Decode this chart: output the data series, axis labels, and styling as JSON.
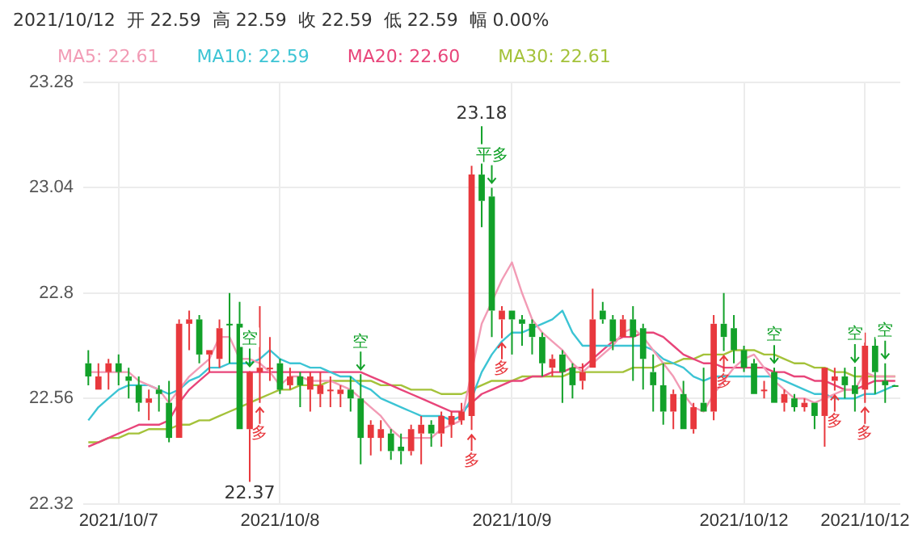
{
  "chart_data": {
    "type": "candlestick",
    "annotations": [
      "2021/10/12  开 22.59  高 22.59  收 22.59  低 22.59  幅 0.00%",
      {
        "text": "空",
        "y": 22.622
      },
      {
        "text": "多",
        "y": 22.55
      },
      {
        "text": "空",
        "y": 22.615
      },
      {
        "text": "多",
        "y": 22.488
      },
      {
        "text": "平多",
        "y": 23.04
      },
      {
        "text": "多",
        "y": 22.697
      },
      {
        "text": "多",
        "y": 22.668
      },
      {
        "text": "空",
        "y": 22.63
      },
      {
        "text": "多",
        "y": 22.578
      },
      {
        "text": "空",
        "y": 22.632
      },
      {
        "text": "多",
        "y": 22.55
      },
      {
        "text": "空",
        "y": 22.64
      }
    ],
    "categories": [
      null,
      null,
      null,
      "2021/10/7",
      null,
      null,
      null,
      null,
      null,
      null,
      null,
      null,
      null,
      null,
      null,
      null,
      null,
      null,
      null,
      "2021/10/8",
      null,
      null,
      null,
      null,
      null,
      null,
      null,
      null,
      null,
      null,
      null,
      null,
      null,
      null,
      null,
      null,
      null,
      null,
      null,
      null,
      null,
      null,
      "2021/10/9",
      null,
      null,
      null,
      null,
      null,
      null,
      null,
      null,
      null,
      null,
      null,
      null,
      null,
      null,
      null,
      null,
      null,
      null,
      null,
      null,
      null,
      null,
      "2021/10/12",
      null,
      null,
      null,
      null,
      null,
      null,
      null,
      null,
      null,
      null,
      null,
      "2021/10/12",
      null,
      null,
      null
    ],
    "ohlc": [
      [
        22.64,
        22.67,
        22.59,
        22.61
      ],
      [
        22.58,
        22.64,
        22.58,
        22.61
      ],
      [
        22.62,
        22.65,
        22.58,
        22.64
      ],
      [
        22.64,
        22.66,
        22.59,
        22.62
      ],
      [
        22.61,
        22.63,
        22.56,
        22.6
      ],
      [
        22.59,
        22.61,
        22.53,
        22.55
      ],
      [
        22.55,
        22.58,
        22.51,
        22.56
      ],
      [
        22.58,
        22.59,
        22.53,
        22.57
      ],
      [
        22.55,
        22.6,
        22.46,
        22.47
      ],
      [
        22.47,
        22.74,
        22.47,
        22.73
      ],
      [
        22.73,
        22.76,
        22.67,
        22.74
      ],
      [
        22.74,
        22.75,
        22.64,
        22.66
      ],
      [
        22.66,
        22.67,
        22.62,
        22.67
      ],
      [
        22.65,
        22.74,
        22.63,
        22.72
      ],
      [
        22.73,
        22.8,
        22.64,
        22.73
      ],
      [
        22.73,
        22.78,
        22.49,
        22.49
      ],
      [
        22.49,
        22.622,
        22.37,
        22.62
      ],
      [
        22.62,
        22.77,
        22.55,
        22.63
      ],
      [
        22.63,
        22.7,
        22.6,
        22.63
      ],
      [
        22.64,
        22.65,
        22.57,
        22.58
      ],
      [
        22.59,
        22.63,
        22.58,
        22.61
      ],
      [
        22.61,
        22.62,
        22.54,
        22.59
      ],
      [
        22.58,
        22.62,
        22.53,
        22.61
      ],
      [
        22.57,
        22.62,
        22.54,
        22.59
      ],
      [
        22.58,
        22.61,
        22.54,
        22.58
      ],
      [
        22.57,
        22.59,
        22.54,
        22.58
      ],
      [
        22.58,
        22.61,
        22.53,
        22.56
      ],
      [
        22.56,
        22.615,
        22.41,
        22.47
      ],
      [
        22.47,
        22.51,
        22.43,
        22.5
      ],
      [
        22.47,
        22.51,
        22.44,
        22.49
      ],
      [
        22.48,
        22.49,
        22.42,
        22.44
      ],
      [
        22.45,
        22.48,
        22.41,
        22.44
      ],
      [
        22.44,
        22.5,
        22.43,
        22.49
      ],
      [
        22.48,
        22.52,
        22.41,
        22.5
      ],
      [
        22.5,
        22.51,
        22.45,
        22.48
      ],
      [
        22.48,
        22.53,
        22.45,
        22.52
      ],
      [
        22.5,
        22.53,
        22.47,
        22.52
      ],
      [
        22.51,
        22.55,
        22.5,
        22.53
      ],
      [
        22.52,
        23.09,
        22.488,
        23.07
      ],
      [
        23.07,
        23.18,
        22.95,
        23.01
      ],
      [
        23.02,
        23.04,
        22.7,
        22.76
      ],
      [
        22.74,
        22.77,
        22.697,
        22.76
      ],
      [
        22.76,
        22.76,
        22.66,
        22.74
      ],
      [
        22.74,
        22.75,
        22.68,
        22.73
      ],
      [
        22.73,
        22.74,
        22.66,
        22.7
      ],
      [
        22.7,
        22.71,
        22.61,
        22.64
      ],
      [
        22.63,
        22.66,
        22.61,
        22.65
      ],
      [
        22.66,
        22.67,
        22.55,
        22.62
      ],
      [
        22.63,
        22.64,
        22.56,
        22.59
      ],
      [
        22.6,
        22.64,
        22.58,
        22.62
      ],
      [
        22.63,
        22.81,
        22.63,
        22.74
      ],
      [
        22.76,
        22.78,
        22.73,
        22.74
      ],
      [
        22.74,
        22.75,
        22.67,
        22.69
      ],
      [
        22.7,
        22.75,
        22.7,
        22.74
      ],
      [
        22.74,
        22.77,
        22.6,
        22.7
      ],
      [
        22.72,
        22.73,
        22.58,
        22.65
      ],
      [
        22.62,
        22.66,
        22.53,
        22.59
      ],
      [
        22.59,
        22.64,
        22.5,
        22.53
      ],
      [
        22.53,
        22.58,
        22.49,
        22.57
      ],
      [
        22.57,
        22.6,
        22.49,
        22.49
      ],
      [
        22.49,
        22.55,
        22.48,
        22.54
      ],
      [
        22.55,
        22.63,
        22.53,
        22.53
      ],
      [
        22.53,
        22.75,
        22.51,
        22.73
      ],
      [
        22.73,
        22.8,
        22.668,
        22.7
      ],
      [
        22.72,
        22.75,
        22.64,
        22.67
      ],
      [
        22.67,
        22.68,
        22.62,
        22.63
      ],
      [
        22.64,
        22.65,
        22.57,
        22.57
      ],
      [
        22.58,
        22.6,
        22.56,
        22.58
      ],
      [
        22.62,
        22.63,
        22.55,
        22.55
      ],
      [
        22.55,
        22.58,
        22.53,
        22.57
      ],
      [
        22.56,
        22.57,
        22.53,
        22.54
      ],
      [
        22.54,
        22.56,
        22.53,
        22.55
      ],
      [
        22.55,
        22.55,
        22.49,
        22.52
      ],
      [
        22.52,
        22.63,
        22.45,
        22.63
      ],
      [
        22.6,
        22.63,
        22.578,
        22.61
      ],
      [
        22.61,
        22.63,
        22.56,
        22.59
      ],
      [
        22.59,
        22.632,
        22.53,
        22.57
      ],
      [
        22.58,
        22.71,
        22.55,
        22.68
      ],
      [
        22.68,
        22.7,
        22.57,
        22.62
      ],
      [
        22.6,
        22.64,
        22.55,
        22.59
      ],
      [
        22.59,
        22.59,
        22.59,
        22.59
      ]
    ],
    "colors": [
      "#12a129",
      "#e8383d",
      "#e8383d",
      "#12a129",
      "#12a129",
      "#12a129",
      "#e8383d",
      "#12a129",
      "#12a129",
      "#e8383d",
      "#e8383d",
      "#12a129",
      "#e8383d",
      "#e8383d",
      "#12a129",
      "#12a129",
      "#e8383d",
      "#e8383d",
      "#e8383d",
      "#12a129",
      "#e8383d",
      "#12a129",
      "#e8383d",
      "#e8383d",
      "#e8383d",
      "#e8383d",
      "#12a129",
      "#12a129",
      "#e8383d",
      "#e8383d",
      "#12a129",
      "#12a129",
      "#e8383d",
      "#e8383d",
      "#12a129",
      "#e8383d",
      "#e8383d",
      "#e8383d",
      "#e8383d",
      "#12a129",
      "#12a129",
      "#e8383d",
      "#12a129",
      "#12a129",
      "#12a129",
      "#12a129",
      "#e8383d",
      "#12a129",
      "#12a129",
      "#e8383d",
      "#e8383d",
      "#12a129",
      "#12a129",
      "#e8383d",
      "#12a129",
      "#12a129",
      "#12a129",
      "#12a129",
      "#e8383d",
      "#12a129",
      "#e8383d",
      "#12a129",
      "#e8383d",
      "#12a129",
      "#12a129",
      "#12a129",
      "#12a129",
      "#e8383d",
      "#12a129",
      "#e8383d",
      "#12a129",
      "#e8383d",
      "#12a129",
      "#e8383d",
      "#e8383d",
      "#12a129",
      "#12a129",
      "#e8383d",
      "#12a129",
      "#12a129",
      "#12a129"
    ],
    "value_labels": [
      null,
      null,
      null,
      null,
      null,
      null,
      null,
      null,
      null,
      null,
      null,
      null,
      null,
      null,
      null,
      null,
      "22.37",
      null,
      null,
      null,
      null,
      null,
      null,
      null,
      null,
      null,
      null,
      null,
      null,
      null,
      null,
      null,
      null,
      null,
      null,
      null,
      null,
      null,
      null,
      "23.18",
      null,
      null,
      null,
      null,
      null,
      null,
      null,
      null,
      null,
      null,
      null,
      null,
      null,
      null,
      null,
      null,
      null,
      null,
      null,
      null,
      null,
      null,
      null,
      null,
      null,
      null,
      null,
      null,
      null,
      null,
      null,
      null,
      null,
      null,
      null,
      null,
      null,
      null,
      null,
      null,
      null
    ],
    "series": [
      {
        "type": "line",
        "name": "MA5: 22.61",
        "color": "#f29bb5",
        "values": [
          22.62,
          22.62,
          22.62,
          22.62,
          22.62,
          22.6,
          22.59,
          22.58,
          22.55,
          22.58,
          22.61,
          22.63,
          22.65,
          22.7,
          22.7,
          22.65,
          22.65,
          22.64,
          22.62,
          22.59,
          22.61,
          22.61,
          22.6,
          22.6,
          22.6,
          22.59,
          22.58,
          22.56,
          22.54,
          22.52,
          22.49,
          22.47,
          22.47,
          22.47,
          22.47,
          22.49,
          22.5,
          22.51,
          22.62,
          22.73,
          22.78,
          22.83,
          22.87,
          22.8,
          22.74,
          22.71,
          22.69,
          22.67,
          22.64,
          22.62,
          22.64,
          22.66,
          22.68,
          22.71,
          22.72,
          22.7,
          22.67,
          22.64,
          22.61,
          22.57,
          22.54,
          22.53,
          22.57,
          22.6,
          22.63,
          22.65,
          22.66,
          22.63,
          22.6,
          22.58,
          22.56,
          22.56,
          22.55,
          22.56,
          22.57,
          22.58,
          22.58,
          22.62,
          22.61,
          22.61,
          22.61
        ]
      },
      {
        "type": "line",
        "name": "MA10: 22.59",
        "color": "#3cc4d4",
        "values": [
          22.51,
          22.54,
          22.56,
          22.58,
          22.59,
          22.59,
          22.59,
          22.58,
          22.57,
          22.58,
          22.6,
          22.61,
          22.63,
          22.63,
          22.64,
          22.64,
          22.64,
          22.65,
          22.67,
          22.65,
          22.64,
          22.64,
          22.63,
          22.63,
          22.62,
          22.61,
          22.61,
          22.59,
          22.58,
          22.56,
          22.55,
          22.54,
          22.53,
          22.52,
          22.52,
          22.52,
          22.51,
          22.52,
          22.56,
          22.62,
          22.66,
          22.69,
          22.71,
          22.71,
          22.72,
          22.73,
          22.74,
          22.76,
          22.71,
          22.68,
          22.68,
          22.68,
          22.68,
          22.68,
          22.68,
          22.68,
          22.67,
          22.65,
          22.64,
          22.63,
          22.61,
          22.6,
          22.61,
          22.61,
          22.61,
          22.61,
          22.61,
          22.61,
          22.61,
          22.6,
          22.59,
          22.58,
          22.57,
          22.57,
          22.56,
          22.56,
          22.56,
          22.57,
          22.57,
          22.58,
          22.59
        ]
      },
      {
        "type": "line",
        "name": "MA20: 22.60",
        "color": "#e8457a",
        "values": [
          22.45,
          22.46,
          22.47,
          22.48,
          22.49,
          22.5,
          22.5,
          22.5,
          22.51,
          22.55,
          22.58,
          22.6,
          22.62,
          22.62,
          22.62,
          22.62,
          22.62,
          22.62,
          22.62,
          22.62,
          22.62,
          22.62,
          22.62,
          22.62,
          22.62,
          22.62,
          22.62,
          22.62,
          22.61,
          22.6,
          22.59,
          22.58,
          22.57,
          22.56,
          22.55,
          22.54,
          22.53,
          22.53,
          22.55,
          22.57,
          22.58,
          22.59,
          22.6,
          22.6,
          22.61,
          22.61,
          22.62,
          22.62,
          22.63,
          22.63,
          22.65,
          22.67,
          22.69,
          22.7,
          22.7,
          22.71,
          22.71,
          22.7,
          22.68,
          22.66,
          22.65,
          22.64,
          22.64,
          22.63,
          22.63,
          22.63,
          22.63,
          22.63,
          22.62,
          22.62,
          22.61,
          22.61,
          22.6,
          22.6,
          22.59,
          22.58,
          22.58,
          22.59,
          22.6,
          22.6,
          22.6
        ]
      },
      {
        "type": "line",
        "name": "MA30: 22.61",
        "color": "#a4c23a",
        "values": [
          22.46,
          22.46,
          22.47,
          22.47,
          22.48,
          22.48,
          22.49,
          22.49,
          22.49,
          22.5,
          22.5,
          22.51,
          22.51,
          22.52,
          22.53,
          22.54,
          22.55,
          22.56,
          22.57,
          22.58,
          22.58,
          22.59,
          22.59,
          22.59,
          22.6,
          22.6,
          22.6,
          22.6,
          22.6,
          22.59,
          22.59,
          22.59,
          22.58,
          22.58,
          22.58,
          22.57,
          22.57,
          22.57,
          22.58,
          22.59,
          22.6,
          22.6,
          22.6,
          22.61,
          22.61,
          22.61,
          22.61,
          22.61,
          22.62,
          22.62,
          22.62,
          22.62,
          22.62,
          22.62,
          22.63,
          22.63,
          22.63,
          22.64,
          22.64,
          22.65,
          22.65,
          22.66,
          22.66,
          22.66,
          22.67,
          22.67,
          22.67,
          22.66,
          22.66,
          22.65,
          22.64,
          22.64,
          22.63,
          22.63,
          22.62,
          22.62,
          22.61,
          22.61,
          22.61,
          22.61,
          22.61
        ]
      }
    ],
    "ylim": [
      22.32,
      23.28
    ],
    "yticks": [
      22.32,
      22.56,
      22.8,
      23.04,
      23.28
    ],
    "grid": true,
    "legend": "top left",
    "marker": "none",
    "line_style": "solid"
  }
}
